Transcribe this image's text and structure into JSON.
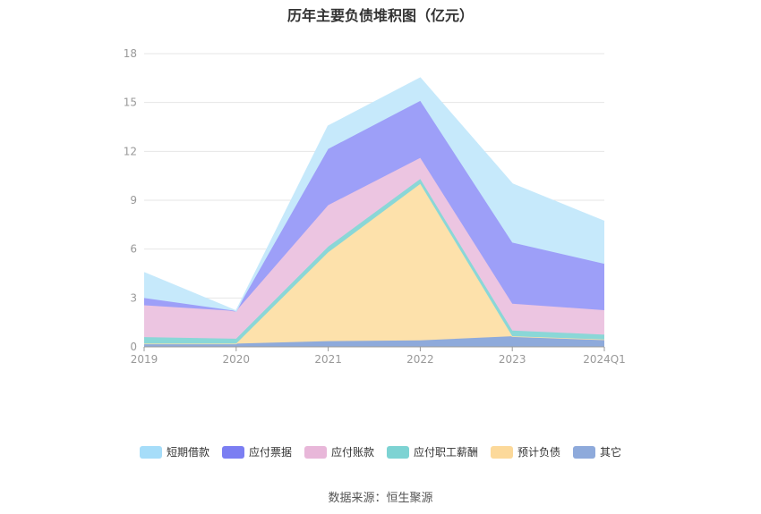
{
  "title": "历年主要负债堆积图（亿元）",
  "source": "数据来源：恒生聚源",
  "chart_data": {
    "type": "area",
    "stacked": true,
    "title": "历年主要负债堆积图（亿元）",
    "x": [
      "2019",
      "2020",
      "2021",
      "2022",
      "2023",
      "2024Q1"
    ],
    "ylim": [
      0,
      18
    ],
    "yticks": [
      0,
      3,
      6,
      9,
      12,
      15,
      18
    ],
    "grid": true,
    "legend_position": "bottom",
    "series": [
      {
        "name": "其它",
        "color": "#8eaadb",
        "values": [
          0.2,
          0.2,
          0.35,
          0.4,
          0.65,
          0.45
        ]
      },
      {
        "name": "预计负债",
        "color": "#fde1ab",
        "values": [
          0.0,
          0.0,
          5.45,
          9.6,
          0.0,
          0.0
        ]
      },
      {
        "name": "应付职工薪酬",
        "color": "#8ad7d7",
        "values": [
          0.4,
          0.3,
          0.35,
          0.3,
          0.35,
          0.3
        ]
      },
      {
        "name": "应付账款",
        "color": "#ecc5e1",
        "values": [
          1.95,
          1.7,
          2.55,
          1.3,
          1.65,
          1.5
        ]
      },
      {
        "name": "应付票据",
        "color": "#9d9ff8",
        "values": [
          0.45,
          0.0,
          3.45,
          3.5,
          3.75,
          2.85
        ]
      },
      {
        "name": "短期借款",
        "color": "#c6e9fb",
        "values": [
          1.55,
          0.0,
          1.4,
          1.4,
          3.6,
          2.6
        ]
      }
    ],
    "legend": [
      {
        "name": "短期借款",
        "color": "#a6ddf9"
      },
      {
        "name": "应付票据",
        "color": "#7b7ef2"
      },
      {
        "name": "应付账款",
        "color": "#e8b7d9"
      },
      {
        "name": "应付职工薪酬",
        "color": "#7dd3d3"
      },
      {
        "name": "预计负债",
        "color": "#fcd99a"
      },
      {
        "name": "其它",
        "color": "#8eaadb"
      }
    ]
  }
}
